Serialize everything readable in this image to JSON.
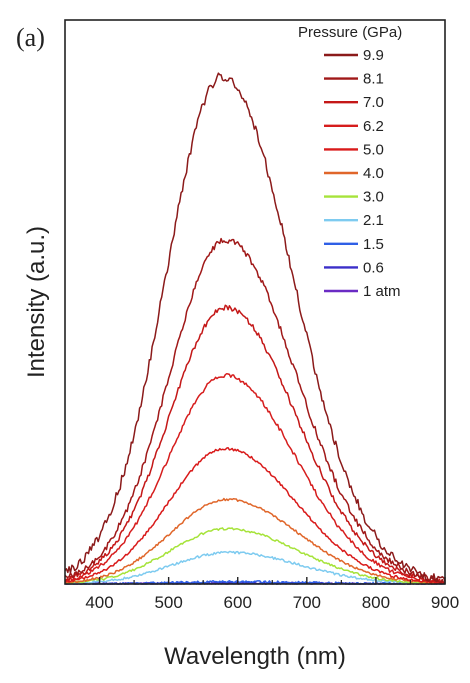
{
  "chart_data": {
    "type": "line",
    "panel_label": "(a)",
    "xlabel": "Wavelength (nm)",
    "ylabel": "Intensity (a.u.)",
    "xlim": [
      350,
      900
    ],
    "ylim": [
      0,
      1.0
    ],
    "x_ticks": [
      400,
      500,
      600,
      700,
      800,
      900
    ],
    "x_tick_labels": [
      "400",
      "500",
      "600",
      "700",
      "800",
      "900"
    ],
    "y_tick_labels_shown": false,
    "grid": false,
    "legend_title": "Pressure (GPa)",
    "legend_position": "top-right",
    "series": [
      {
        "name": "9.9",
        "color": "#8b1a1a",
        "peak_x": 578,
        "peak_y": 0.9
      },
      {
        "name": "8.1",
        "color": "#a01818",
        "peak_x": 583,
        "peak_y": 0.61
      },
      {
        "name": "7.0",
        "color": "#c41717",
        "peak_x": 583,
        "peak_y": 0.49
      },
      {
        "name": "6.2",
        "color": "#d61d1d",
        "peak_x": 582,
        "peak_y": 0.37
      },
      {
        "name": "5.0",
        "color": "#d91a1a",
        "peak_x": 582,
        "peak_y": 0.24
      },
      {
        "name": "4.0",
        "color": "#e0662a",
        "peak_x": 585,
        "peak_y": 0.15
      },
      {
        "name": "3.0",
        "color": "#a6e33a",
        "peak_x": 585,
        "peak_y": 0.098
      },
      {
        "name": "2.1",
        "color": "#7ecbf0",
        "peak_x": 588,
        "peak_y": 0.056
      },
      {
        "name": "1.5",
        "color": "#2f5fe6",
        "peak_x": 590,
        "peak_y": 0.004
      },
      {
        "name": "0.6",
        "color": "#3b2fc9",
        "peak_x": 590,
        "peak_y": 0.002
      },
      {
        "name": "1 atm",
        "color": "#6a2bc4",
        "peak_x": 590,
        "peak_y": 0.001
      }
    ]
  }
}
